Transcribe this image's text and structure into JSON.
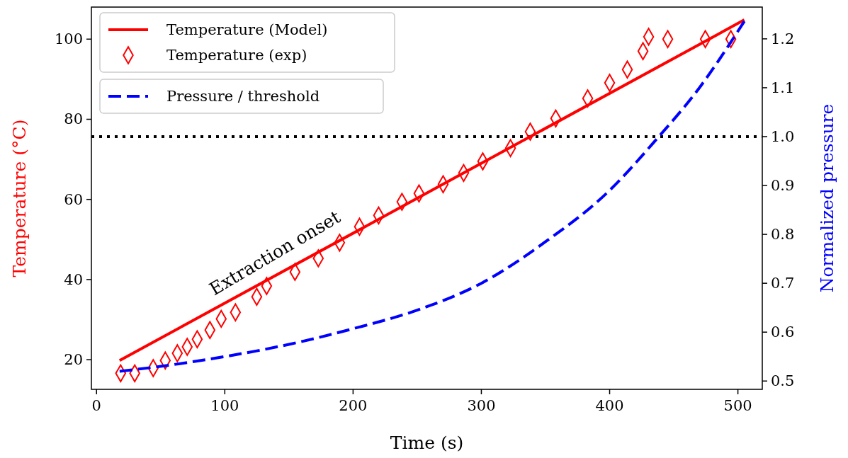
{
  "chart_data": {
    "type": "line",
    "xlabel": "Time (s)",
    "ylabel": "Temperature (°C)",
    "y2label": "Normalized pressure",
    "xlim": [
      -4,
      519
    ],
    "xticks": [
      0,
      100,
      200,
      300,
      400,
      500
    ],
    "ylim": [
      12.6,
      108
    ],
    "yticks": [
      20,
      40,
      60,
      80,
      100
    ],
    "y2lim": [
      0.483,
      1.265
    ],
    "y2ticks": [
      0.5,
      0.6,
      0.7,
      0.8,
      0.9,
      {
        "value": 1.0,
        "label": "1.0"
      },
      1.1,
      1.2
    ],
    "legend": "top left",
    "grid": false,
    "annotations": [
      "Extraction onset"
    ],
    "ref_lines": [
      {
        "axis": "y2",
        "value": 1.0,
        "label": null,
        "color": "#000000",
        "line_style": "dotted"
      }
    ],
    "series": [
      {
        "name": "Temperature (Model)",
        "color": "#ff0000",
        "line_style": "solid",
        "marker": "none",
        "x": [
          18,
          505
        ],
        "values": [
          19.8,
          104.8
        ]
      },
      {
        "name": "Temperature (exp)",
        "type": "scatter",
        "color": "#ff0000",
        "marker": "diamond",
        "x": [
          18.8,
          29.8,
          44.2,
          53.6,
          63,
          70.7,
          78.5,
          88.4,
          97.2,
          108.3,
          124.9,
          132.6,
          154.7,
          172.9,
          189.5,
          205,
          219.9,
          238.1,
          251.4,
          270.2,
          286.2,
          301.1,
          322.7,
          338.1,
          358,
          382.9,
          400,
          413.8,
          426,
          430.4,
          445.3,
          474.6,
          494.5
        ],
        "values": [
          16.6,
          16.6,
          17.9,
          19.8,
          21.6,
          23.2,
          25.1,
          27.4,
          30.2,
          31.8,
          35.7,
          38.4,
          41.9,
          45.3,
          49.2,
          53.2,
          56,
          59.4,
          61.5,
          63.8,
          66.6,
          69.5,
          72.8,
          76.9,
          80.2,
          85.2,
          89.1,
          92.4,
          97,
          100.6,
          100,
          100,
          100
        ]
      },
      {
        "name": "Pressure / threshold",
        "axis": "y2",
        "color": "#0000ff",
        "line_style": "dashed",
        "marker": "none",
        "x": [
          18,
          50,
          100,
          150,
          200,
          250,
          300,
          350,
          400,
          435,
          470,
          505
        ],
        "values": [
          0.52,
          0.53,
          0.55,
          0.575,
          0.607,
          0.645,
          0.7,
          0.785,
          0.89,
          0.99,
          1.1,
          1.236
        ]
      }
    ]
  }
}
